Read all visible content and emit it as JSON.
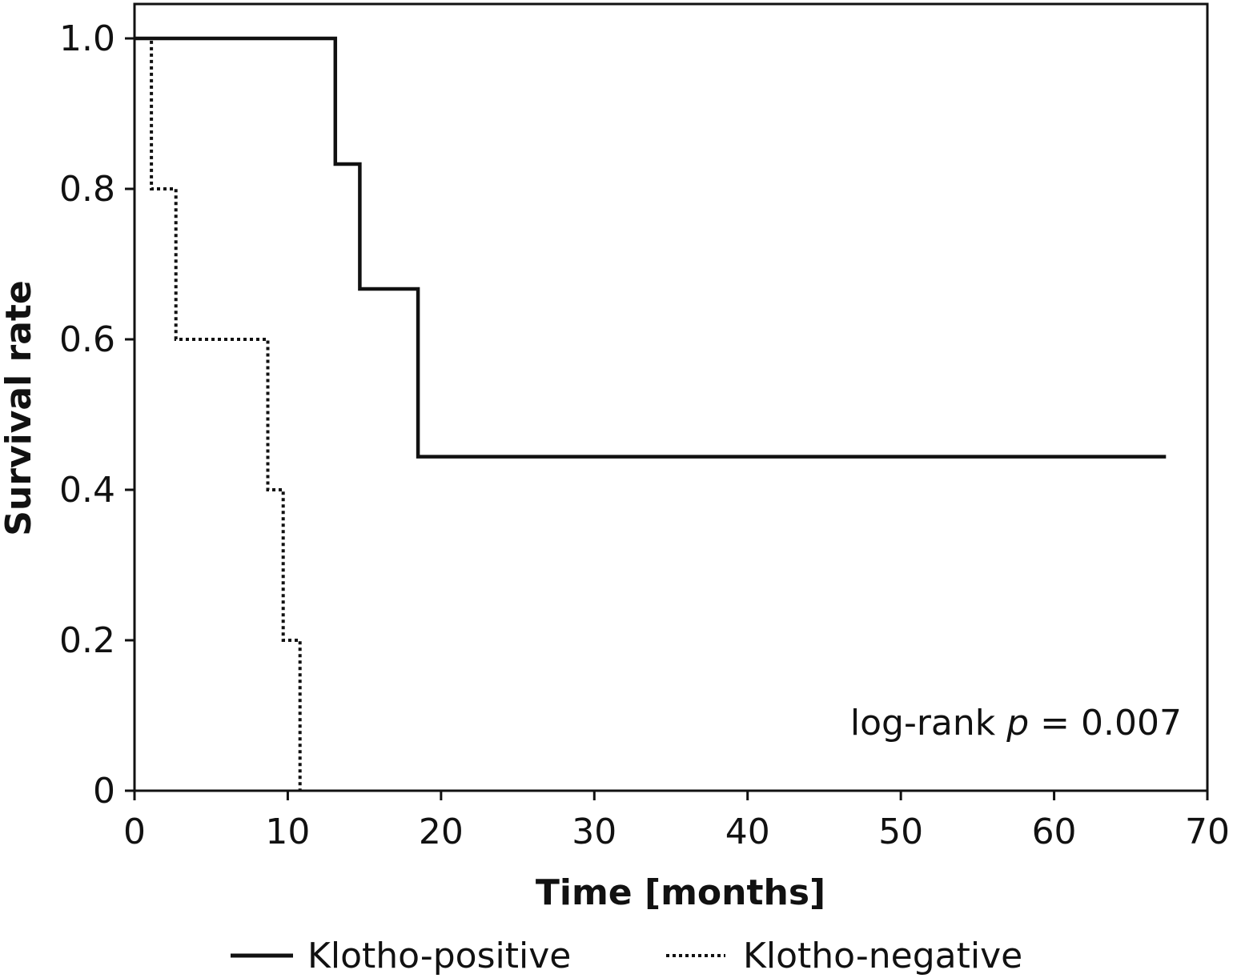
{
  "chart_data": {
    "type": "line",
    "subtype": "kaplan-meier step",
    "title": "",
    "xlabel": "Time [months]",
    "ylabel": "Survival rate",
    "xlim": [
      0,
      70
    ],
    "ylim": [
      0,
      1.0
    ],
    "x_ticks": [
      0,
      10,
      20,
      30,
      40,
      50,
      60,
      70
    ],
    "x_tick_labels": [
      "0",
      "10",
      "20",
      "30",
      "40",
      "50",
      "60",
      "70"
    ],
    "y_ticks": [
      0,
      0.2,
      0.4,
      0.6,
      0.8,
      1.0
    ],
    "y_tick_labels": [
      "0",
      "0.2",
      "0.4",
      "0.6",
      "0.8",
      "1.0"
    ],
    "grid": false,
    "legend_position": "bottom",
    "annotation": {
      "prefix": "log-rank ",
      "italic": "p",
      "suffix": " = 0.007"
    },
    "series": [
      {
        "name": "Klotho-positive",
        "style": "solid",
        "color": "#111111",
        "x": [
          0,
          13.1,
          13.1,
          14.7,
          14.7,
          18.5,
          18.5,
          67.3
        ],
        "y": [
          1.0,
          1.0,
          0.833,
          0.833,
          0.667,
          0.667,
          0.444,
          0.444
        ]
      },
      {
        "name": "Klotho-negative",
        "style": "dotted",
        "color": "#111111",
        "x": [
          0,
          1.1,
          1.1,
          2.7,
          2.7,
          8.7,
          8.7,
          9.7,
          9.7,
          10.8,
          10.8
        ],
        "y": [
          1.0,
          1.0,
          0.8,
          0.8,
          0.6,
          0.6,
          0.4,
          0.4,
          0.2,
          0.2,
          0.0
        ]
      }
    ]
  }
}
